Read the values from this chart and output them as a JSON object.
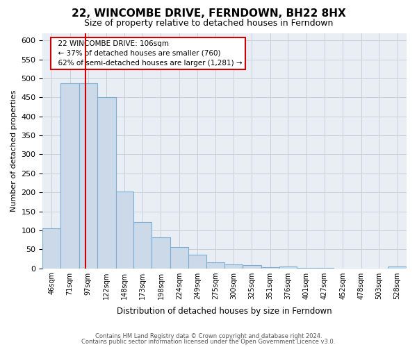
{
  "title": "22, WINCOMBE DRIVE, FERNDOWN, BH22 8HX",
  "subtitle": "Size of property relative to detached houses in Ferndown",
  "xlabel": "Distribution of detached houses by size in Ferndown",
  "ylabel": "Number of detached properties",
  "bar_edges": [
    46,
    71,
    97,
    122,
    148,
    173,
    198,
    224,
    249,
    275,
    300,
    325,
    351,
    376,
    401,
    427,
    452,
    478,
    503,
    528,
    554
  ],
  "bar_heights": [
    105,
    487,
    487,
    450,
    202,
    122,
    82,
    55,
    35,
    16,
    10,
    8,
    3,
    5,
    1,
    1,
    0,
    0,
    0,
    5
  ],
  "bar_color": "#ccd9e8",
  "bar_edge_color": "#7aafd4",
  "vline_x": 106,
  "vline_color": "#cc0000",
  "ylim": [
    0,
    620
  ],
  "yticks": [
    0,
    50,
    100,
    150,
    200,
    250,
    300,
    350,
    400,
    450,
    500,
    550,
    600
  ],
  "annotation_title": "22 WINCOMBE DRIVE: 106sqm",
  "annotation_line1": "← 37% of detached houses are smaller (760)",
  "annotation_line2": "62% of semi-detached houses are larger (1,281) →",
  "annotation_box_color": "#ffffff",
  "annotation_box_edge": "#cc0000",
  "footer1": "Contains HM Land Registry data © Crown copyright and database right 2024.",
  "footer2": "Contains public sector information licensed under the Open Government Licence v3.0.",
  "bg_color": "#ffffff",
  "plot_bg_color": "#e8eef4",
  "grid_color": "#c8d0d8",
  "title_fontsize": 11,
  "subtitle_fontsize": 9
}
